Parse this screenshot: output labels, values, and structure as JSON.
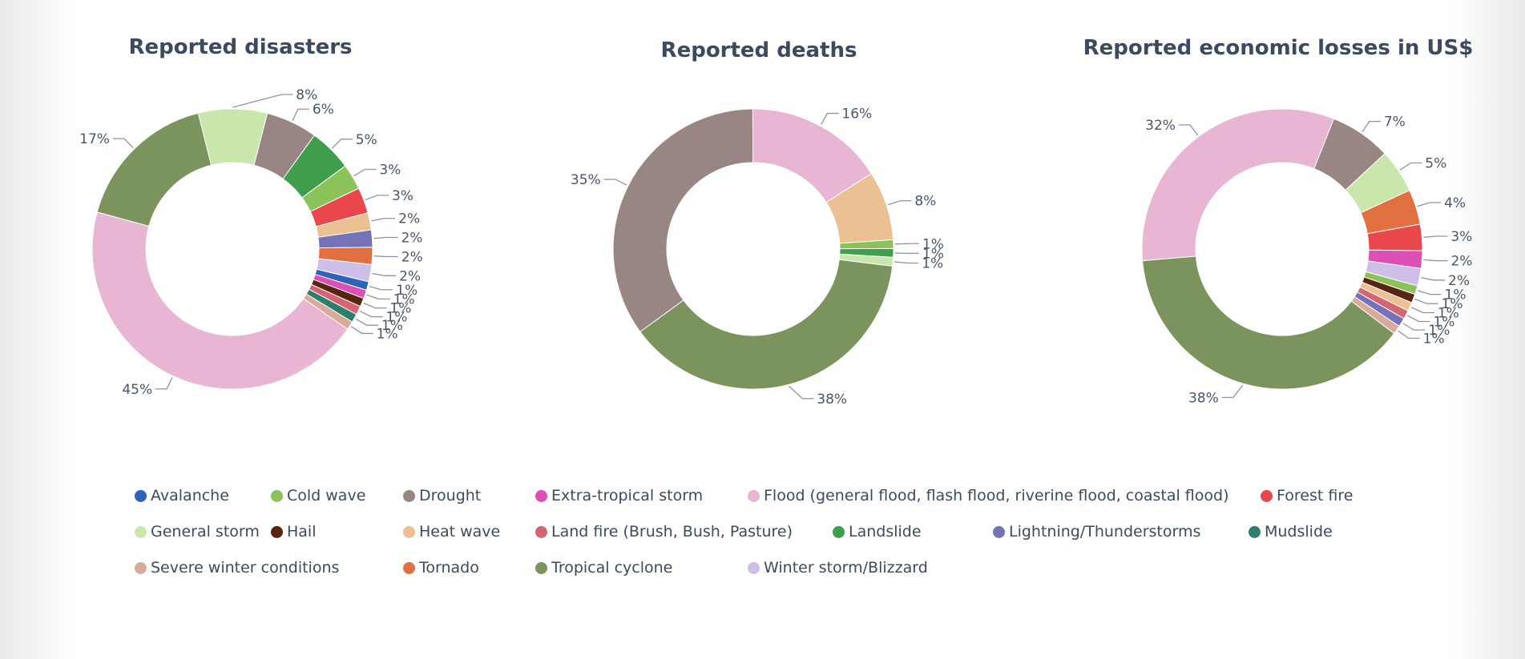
{
  "categories": [
    {
      "name": "Avalanche",
      "color": "#2f63b8"
    },
    {
      "name": "Cold wave",
      "color": "#8bc35a"
    },
    {
      "name": "Drought",
      "color": "#9a8585"
    },
    {
      "name": "Extra-tropical storm",
      "color": "#dc4fb5"
    },
    {
      "name": "Flood (general flood, flash flood, riverine flood, coastal flood)",
      "color": "#e8b5d2"
    },
    {
      "name": "Forest fire",
      "color": "#e8474c"
    },
    {
      "name": "General storm",
      "color": "#c9e7ad"
    },
    {
      "name": "Hail",
      "color": "#5a2413"
    },
    {
      "name": "Heat wave",
      "color": "#ebc092"
    },
    {
      "name": "Land fire (Brush, Bush, Pasture)",
      "color": "#d46673"
    },
    {
      "name": "Landslide",
      "color": "#3f9e4b"
    },
    {
      "name": "Lightning/Thunderstorms",
      "color": "#7572b9"
    },
    {
      "name": "Mudslide",
      "color": "#2d7e6a"
    },
    {
      "name": "Severe winter conditions",
      "color": "#d7aa9a"
    },
    {
      "name": "Tornado",
      "color": "#e07040"
    },
    {
      "name": "Tropical cyclone",
      "color": "#7b935d"
    },
    {
      "name": "Winter storm/Blizzard",
      "color": "#cdbfe8"
    }
  ],
  "chart_data": [
    {
      "type": "pie",
      "title": "Reported disasters",
      "slices": [
        {
          "category": "Drought",
          "value": 6,
          "label": "6%"
        },
        {
          "category": "Landslide",
          "value": 5,
          "label": "5%"
        },
        {
          "category": "Cold wave",
          "value": 3,
          "label": "3%"
        },
        {
          "category": "Forest fire",
          "value": 3,
          "label": "3%"
        },
        {
          "category": "Heat wave",
          "value": 2,
          "label": "2%"
        },
        {
          "category": "Lightning/Thunderstorms",
          "value": 2,
          "label": "2%"
        },
        {
          "category": "Tornado",
          "value": 2,
          "label": "2%"
        },
        {
          "category": "Winter storm/Blizzard",
          "value": 2,
          "label": "2%"
        },
        {
          "category": "Avalanche",
          "value": 1,
          "label": "1%"
        },
        {
          "category": "Extra-tropical storm",
          "value": 1,
          "label": "1%"
        },
        {
          "category": "Hail",
          "value": 1,
          "label": "1%"
        },
        {
          "category": "Land fire (Brush, Bush, Pasture)",
          "value": 1,
          "label": "1%"
        },
        {
          "category": "Mudslide",
          "value": 1,
          "label": "1%"
        },
        {
          "category": "Severe winter conditions",
          "value": 1,
          "label": "1%"
        },
        {
          "category": "Flood (general flood, flash flood, riverine flood, coastal flood)",
          "value": 45,
          "label": "45%"
        },
        {
          "category": "Tropical cyclone",
          "value": 17,
          "label": "17%"
        },
        {
          "category": "General storm",
          "value": 8,
          "label": "8%"
        }
      ]
    },
    {
      "type": "pie",
      "title": "Reported deaths",
      "slices": [
        {
          "category": "Tropical cyclone",
          "value": 38,
          "label": "38%"
        },
        {
          "category": "Drought",
          "value": 35,
          "label": "35%"
        },
        {
          "category": "Flood (general flood, flash flood, riverine flood, coastal flood)",
          "value": 16,
          "label": "16%"
        },
        {
          "category": "Heat wave",
          "value": 8,
          "label": "8%"
        },
        {
          "category": "Cold wave",
          "value": 1,
          "label": "1%"
        },
        {
          "category": "Landslide",
          "value": 1,
          "label": "1%"
        },
        {
          "category": "General storm",
          "value": 1,
          "label": "1%"
        }
      ]
    },
    {
      "type": "pie",
      "title": "Reported economic losses in US$",
      "slices": [
        {
          "category": "Drought",
          "value": 7,
          "label": "7%"
        },
        {
          "category": "General storm",
          "value": 5,
          "label": "5%"
        },
        {
          "category": "Tornado",
          "value": 4,
          "label": "4%"
        },
        {
          "category": "Forest fire",
          "value": 3,
          "label": "3%"
        },
        {
          "category": "Extra-tropical storm",
          "value": 2,
          "label": "2%"
        },
        {
          "category": "Winter storm/Blizzard",
          "value": 2,
          "label": "2%"
        },
        {
          "category": "Cold wave",
          "value": 1,
          "label": "1%"
        },
        {
          "category": "Hail",
          "value": 1,
          "label": "1%"
        },
        {
          "category": "Heat wave",
          "value": 1,
          "label": "1%"
        },
        {
          "category": "Land fire (Brush, Bush, Pasture)",
          "value": 1,
          "label": "1%"
        },
        {
          "category": "Lightning/Thunderstorms",
          "value": 1,
          "label": "1%"
        },
        {
          "category": "Severe winter conditions",
          "value": 1,
          "label": "1%"
        },
        {
          "category": "Tropical cyclone",
          "value": 38,
          "label": "38%"
        },
        {
          "category": "Flood (general flood, flash flood, riverine flood, coastal flood)",
          "value": 32,
          "label": "32%"
        }
      ]
    }
  ]
}
